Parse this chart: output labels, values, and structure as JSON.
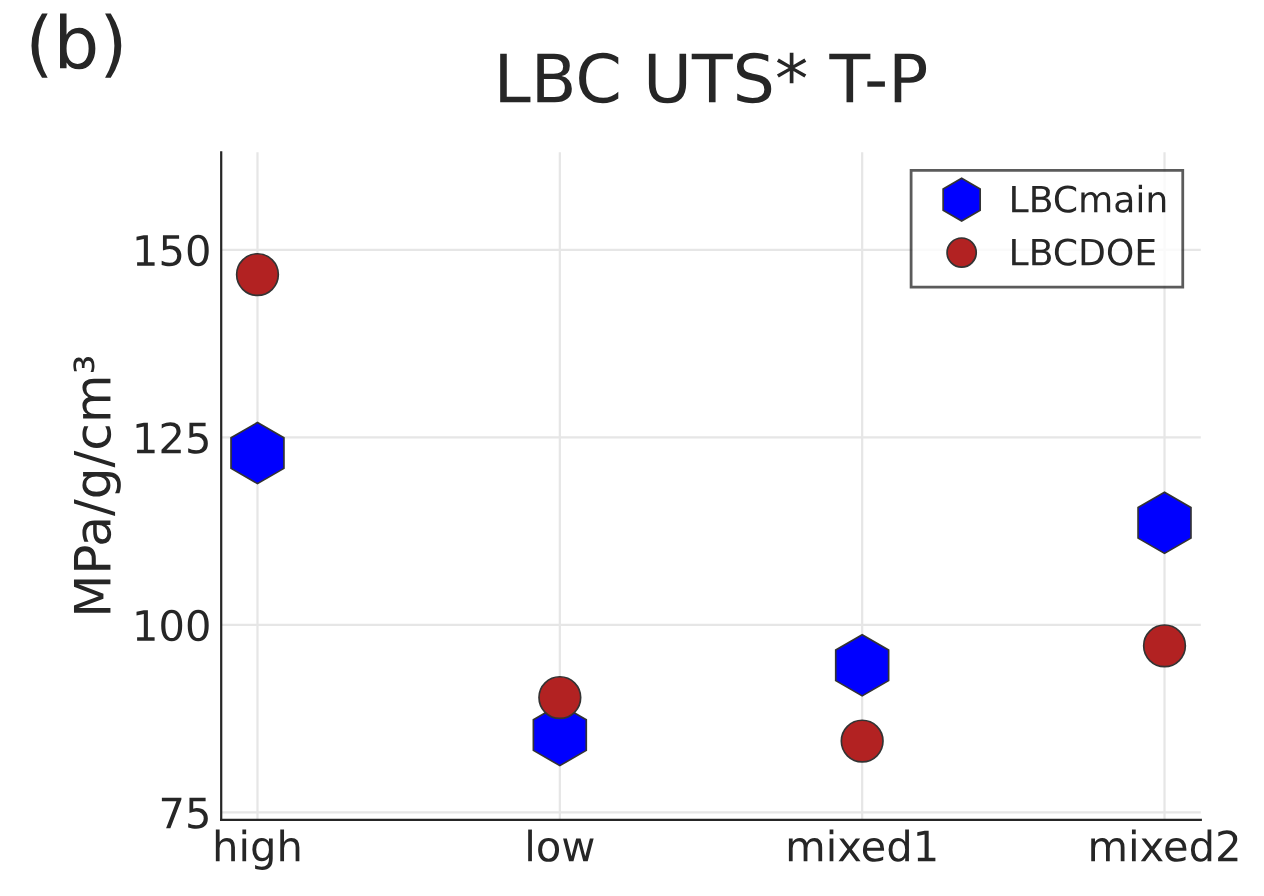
{
  "chart_data": {
    "type": "scatter",
    "title": "LBC UTS* T-P",
    "ylabel": "MPa/g/cm³",
    "annotations": [
      "(b)"
    ],
    "categories": [
      "high",
      "low",
      "mixed1",
      "mixed2"
    ],
    "series": [
      {
        "name": "LBCmain",
        "color": "#0000ff",
        "values": [
          122.9,
          85.3,
          94.6,
          113.6
        ]
      },
      {
        "name": "LBCDOE",
        "color": "#b22222",
        "values": [
          146.7,
          90.3,
          84.5,
          97.2
        ]
      }
    ],
    "ylim": [
      74,
      163
    ],
    "yticks": [
      75,
      100,
      125,
      150
    ],
    "grid": true,
    "legend": "top right"
  }
}
